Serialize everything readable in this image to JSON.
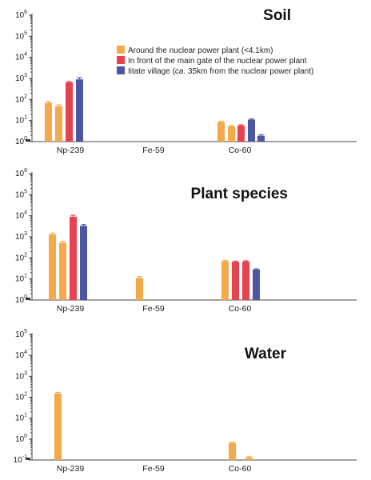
{
  "legend": [
    {
      "label": "Around the nuclear power plant (<4.1km)",
      "color": "#f5a94b"
    },
    {
      "label": "In front of the main gate of the nuclear power plant",
      "color": "#e8414f"
    },
    {
      "label_parts": [
        "Iitate village (",
        "ca.",
        " 35km from the nuclear power plant)"
      ],
      "color": "#4b57a3"
    }
  ],
  "chart_data": [
    {
      "type": "bar",
      "title": "Soil",
      "categories": [
        "Np-239",
        "Fe-59",
        "Co-60"
      ],
      "yscale": "log",
      "ylim": [
        1,
        1000000
      ],
      "yticks": [
        {
          "exp": 0,
          "base": "10",
          "sup": "0"
        },
        {
          "exp": 1,
          "base": "10",
          "sup": "1"
        },
        {
          "exp": 2,
          "base": "10",
          "sup": "2"
        },
        {
          "exp": 3,
          "base": "10",
          "sup": "3"
        },
        {
          "exp": 4,
          "base": "10",
          "sup": "4"
        },
        {
          "exp": 5,
          "base": "10",
          "sup": "5"
        },
        {
          "exp": 6,
          "base": "10",
          "sup": "6"
        }
      ],
      "bars": [
        {
          "category": "Np-239",
          "series": 0,
          "value": 70,
          "err": 12
        },
        {
          "category": "Np-239",
          "series": 0,
          "value": 48,
          "err": 8
        },
        {
          "category": "Np-239",
          "series": 1,
          "value": 650,
          "err": 60
        },
        {
          "category": "Np-239",
          "series": 2,
          "value": 900,
          "err": 180
        },
        {
          "category": "Co-60",
          "series": 0,
          "value": 8.5,
          "err": 0.8
        },
        {
          "category": "Co-60",
          "series": 0,
          "value": 5.3,
          "err": 0.4
        },
        {
          "category": "Co-60",
          "series": 1,
          "value": 5.8,
          "err": 0.5
        },
        {
          "category": "Co-60",
          "series": 2,
          "value": 11,
          "err": 0.8
        },
        {
          "category": "Co-60",
          "series": 2,
          "value": 1.9,
          "err": 0.2
        }
      ]
    },
    {
      "type": "bar",
      "title": "Plant species",
      "categories": [
        "Np-239",
        "Fe-59",
        "Co-60"
      ],
      "yscale": "log",
      "ylim": [
        1,
        1000000
      ],
      "yticks": [
        {
          "exp": 0,
          "base": "10",
          "sup": "0"
        },
        {
          "exp": 1,
          "base": "10",
          "sup": "1"
        },
        {
          "exp": 2,
          "base": "10",
          "sup": "2"
        },
        {
          "exp": 3,
          "base": "10",
          "sup": "3"
        },
        {
          "exp": 4,
          "base": "10",
          "sup": "4"
        },
        {
          "exp": 5,
          "base": "10",
          "sup": "5"
        },
        {
          "exp": 6,
          "base": "10",
          "sup": "6"
        }
      ],
      "bars": [
        {
          "category": "Np-239",
          "series": 0,
          "value": 1300,
          "err": 200
        },
        {
          "category": "Np-239",
          "series": 0,
          "value": 520,
          "err": 90
        },
        {
          "category": "Np-239",
          "series": 1,
          "value": 9000,
          "err": 1500
        },
        {
          "category": "Np-239",
          "series": 2,
          "value": 3300,
          "err": 500
        },
        {
          "category": "Fe-59",
          "series": 0,
          "value": 11,
          "err": 2
        },
        {
          "category": "Co-60",
          "series": 0,
          "value": 70,
          "err": 5
        },
        {
          "category": "Co-60",
          "series": 1,
          "value": 65,
          "err": 5
        },
        {
          "category": "Co-60",
          "series": 1,
          "value": 68,
          "err": 5
        },
        {
          "category": "Co-60",
          "series": 2,
          "value": 28,
          "err": 2
        }
      ]
    },
    {
      "type": "bar",
      "title": "Water",
      "categories": [
        "Np-239",
        "Fe-59",
        "Co-60"
      ],
      "yscale": "log",
      "ylim": [
        0.1,
        100000
      ],
      "yticks": [
        {
          "exp": -1,
          "base": "10",
          "sup": "-1"
        },
        {
          "exp": 0,
          "base": "10",
          "sup": "0"
        },
        {
          "exp": 1,
          "base": "10",
          "sup": "1"
        },
        {
          "exp": 2,
          "base": "10",
          "sup": "2"
        },
        {
          "exp": 3,
          "base": "10",
          "sup": "3"
        },
        {
          "exp": 4,
          "base": "10",
          "sup": "4"
        },
        {
          "exp": 5,
          "base": "10",
          "sup": "5"
        }
      ],
      "bars": [
        {
          "category": "Np-239",
          "series": 0,
          "value": 150,
          "err": 20
        },
        {
          "category": "Co-60",
          "series": 0,
          "value": 0.65,
          "err": 0.05
        },
        {
          "category": "Co-60",
          "series": 0,
          "value": 0.13,
          "err": 0.015
        }
      ]
    }
  ]
}
